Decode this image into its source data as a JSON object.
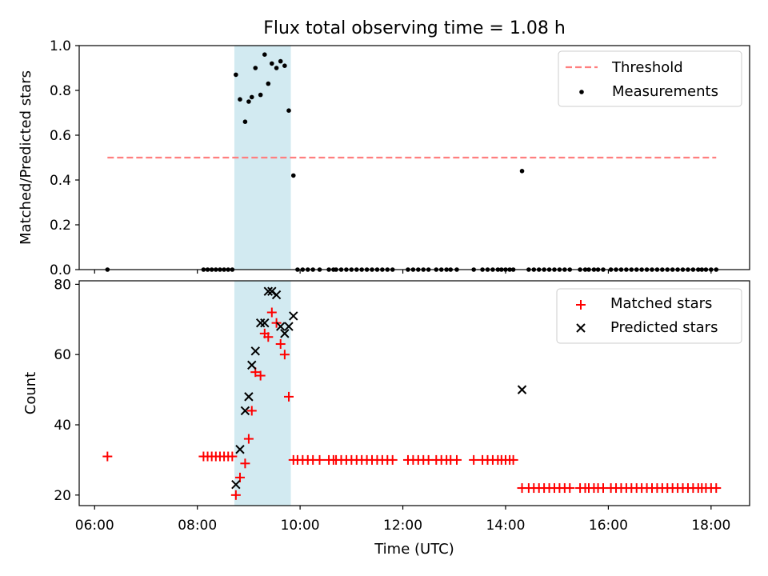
{
  "title": "Flux total observing time = 1.08 h",
  "chart_data": [
    {
      "type": "scatter",
      "ylabel": "Matched/Predicted stars",
      "xlim": [
        5.7,
        18.75
      ],
      "ylim": [
        0,
        1.0
      ],
      "yticks": [
        0.0,
        0.2,
        0.4,
        0.6,
        0.8,
        1.0
      ],
      "ytick_labels": [
        "0.0",
        "0.2",
        "0.4",
        "0.6",
        "0.8",
        "1.0"
      ],
      "threshold": {
        "name": "Threshold",
        "value": 0.5,
        "x_range": [
          6.25,
          18.1
        ],
        "color": "#ff7f7f"
      },
      "highlight_span": {
        "x_range": [
          8.72,
          9.82
        ],
        "color": "#add8e6"
      },
      "legend": {
        "placement": "upper right",
        "entries": [
          "Threshold",
          "Measurements"
        ]
      },
      "series": [
        {
          "name": "Measurements",
          "color": "#000000",
          "x": [
            6.25,
            8.12,
            8.2,
            8.28,
            8.36,
            8.44,
            8.52,
            8.6,
            8.68,
            8.75,
            8.83,
            8.93,
            9.0,
            9.06,
            9.13,
            9.23,
            9.31,
            9.38,
            9.45,
            9.54,
            9.62,
            9.7,
            9.78,
            9.87,
            9.95,
            10.05,
            10.15,
            10.25,
            10.38,
            10.56,
            10.65,
            10.7,
            10.8,
            10.9,
            11.0,
            11.1,
            11.2,
            11.3,
            11.4,
            11.5,
            11.6,
            11.7,
            11.8,
            12.1,
            12.2,
            12.3,
            12.4,
            12.5,
            12.65,
            12.75,
            12.85,
            12.93,
            13.05,
            13.38,
            13.55,
            13.65,
            13.75,
            13.85,
            13.92,
            14.0,
            14.08,
            14.15,
            14.32,
            14.45,
            14.55,
            14.65,
            14.75,
            14.85,
            14.95,
            15.05,
            15.15,
            15.25,
            15.45,
            15.55,
            15.62,
            15.72,
            15.8,
            15.9,
            16.05,
            16.15,
            16.25,
            16.35,
            16.45,
            16.55,
            16.65,
            16.75,
            16.85,
            16.95,
            17.05,
            17.15,
            17.25,
            17.35,
            17.45,
            17.55,
            17.65,
            17.75,
            17.82,
            17.9,
            18.0,
            18.1
          ],
          "y": [
            0,
            0,
            0,
            0,
            0,
            0,
            0,
            0,
            0,
            0.87,
            0.76,
            0.66,
            0.75,
            0.77,
            0.9,
            0.78,
            0.96,
            0.83,
            0.92,
            0.9,
            0.93,
            0.91,
            0.71,
            0.42,
            0,
            0,
            0,
            0,
            0,
            0,
            0,
            0,
            0,
            0,
            0,
            0,
            0,
            0,
            0,
            0,
            0,
            0,
            0,
            0,
            0,
            0,
            0,
            0,
            0,
            0,
            0,
            0,
            0,
            0,
            0,
            0,
            0,
            0,
            0,
            0,
            0,
            0,
            0.44,
            0,
            0,
            0,
            0,
            0,
            0,
            0,
            0,
            0,
            0,
            0,
            0,
            0,
            0,
            0,
            0,
            0,
            0,
            0,
            0,
            0,
            0,
            0,
            0,
            0,
            0,
            0,
            0,
            0,
            0,
            0,
            0,
            0,
            0,
            0,
            0,
            0
          ]
        }
      ]
    },
    {
      "type": "scatter",
      "xlabel": "Time (UTC)",
      "ylabel": "Count",
      "xlim": [
        5.7,
        18.75
      ],
      "ylim": [
        17,
        81
      ],
      "xticks": [
        6,
        8,
        10,
        12,
        14,
        16,
        18
      ],
      "xtick_labels": [
        "06:00",
        "08:00",
        "10:00",
        "12:00",
        "14:00",
        "16:00",
        "18:00"
      ],
      "yticks": [
        20,
        40,
        60,
        80
      ],
      "ytick_labels": [
        "20",
        "40",
        "60",
        "80"
      ],
      "highlight_span": {
        "x_range": [
          8.72,
          9.82
        ],
        "color": "#add8e6"
      },
      "legend": {
        "placement": "upper right",
        "entries": [
          "Matched stars",
          "Predicted stars"
        ]
      },
      "series": [
        {
          "name": "Matched stars",
          "marker": "plus",
          "color": "#ff0000",
          "x": [
            6.25,
            8.12,
            8.2,
            8.28,
            8.36,
            8.44,
            8.52,
            8.6,
            8.68,
            8.75,
            8.83,
            8.93,
            9.0,
            9.06,
            9.13,
            9.23,
            9.31,
            9.38,
            9.45,
            9.54,
            9.62,
            9.7,
            9.78,
            9.87,
            9.95,
            10.05,
            10.15,
            10.25,
            10.38,
            10.56,
            10.65,
            10.7,
            10.8,
            10.9,
            11.0,
            11.1,
            11.2,
            11.3,
            11.4,
            11.5,
            11.6,
            11.7,
            11.8,
            12.1,
            12.2,
            12.3,
            12.4,
            12.5,
            12.65,
            12.75,
            12.85,
            12.93,
            13.05,
            13.38,
            13.55,
            13.65,
            13.75,
            13.85,
            13.92,
            14.0,
            14.08,
            14.15,
            14.32,
            14.45,
            14.55,
            14.65,
            14.75,
            14.85,
            14.95,
            15.05,
            15.15,
            15.25,
            15.45,
            15.55,
            15.62,
            15.72,
            15.8,
            15.9,
            16.05,
            16.15,
            16.25,
            16.35,
            16.45,
            16.55,
            16.65,
            16.75,
            16.85,
            16.95,
            17.05,
            17.15,
            17.25,
            17.35,
            17.45,
            17.55,
            17.65,
            17.75,
            17.82,
            17.9,
            18.0,
            18.1
          ],
          "y": [
            31,
            31,
            31,
            31,
            31,
            31,
            31,
            31,
            31,
            20,
            25,
            29,
            36,
            44,
            55,
            54,
            66,
            65,
            72,
            69,
            63,
            60,
            48,
            30,
            30,
            30,
            30,
            30,
            30,
            30,
            30,
            30,
            30,
            30,
            30,
            30,
            30,
            30,
            30,
            30,
            30,
            30,
            30,
            30,
            30,
            30,
            30,
            30,
            30,
            30,
            30,
            30,
            30,
            30,
            30,
            30,
            30,
            30,
            30,
            30,
            30,
            30,
            22,
            22,
            22,
            22,
            22,
            22,
            22,
            22,
            22,
            22,
            22,
            22,
            22,
            22,
            22,
            22,
            22,
            22,
            22,
            22,
            22,
            22,
            22,
            22,
            22,
            22,
            22,
            22,
            22,
            22,
            22,
            22,
            22,
            22,
            22,
            22,
            22,
            22
          ]
        },
        {
          "name": "Predicted stars",
          "marker": "x",
          "color": "#000000",
          "x": [
            8.75,
            8.83,
            8.93,
            9.0,
            9.06,
            9.13,
            9.23,
            9.31,
            9.38,
            9.45,
            9.54,
            9.62,
            9.7,
            9.78,
            9.87,
            14.32
          ],
          "y": [
            23,
            33,
            44,
            48,
            57,
            61,
            69,
            69,
            78,
            78,
            77,
            68,
            66,
            68,
            71,
            50
          ]
        }
      ]
    }
  ]
}
